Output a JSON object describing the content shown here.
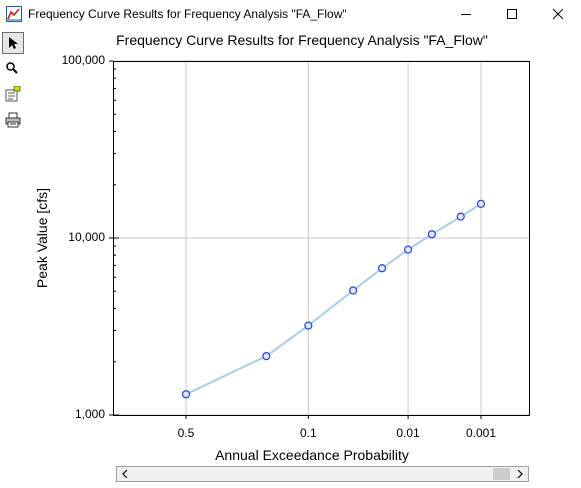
{
  "window": {
    "title": "Frequency Curve Results for Frequency Analysis \"FA_Flow\""
  },
  "toolbar": {
    "tools": [
      {
        "name": "select",
        "icon": "arrow-pointer-icon"
      },
      {
        "name": "zoom",
        "icon": "magnifier-icon"
      },
      {
        "name": "properties",
        "icon": "properties-icon"
      },
      {
        "name": "print",
        "icon": "printer-icon"
      }
    ]
  },
  "chart_data": {
    "type": "line",
    "title": "Frequency Curve Results for Frequency Analysis \"FA_Flow\"",
    "xlabel": "Annual Exceedance Probability",
    "ylabel": "Peak Value [cfs]",
    "x_scale": "normal-probability",
    "y_scale": "log",
    "ylim": [
      1000,
      100000
    ],
    "y_ticks": [
      "1,000",
      "10,000",
      "100,000"
    ],
    "x_ticks": [
      "0.5",
      "0.1",
      "0.01",
      "0.001"
    ],
    "grid": true,
    "series": [
      {
        "x": [
          0.5,
          0.2,
          0.1,
          0.04,
          0.02,
          0.01,
          0.005,
          0.002,
          0.001
        ],
        "y": [
          1310,
          2150,
          3200,
          5050,
          6750,
          8600,
          10500,
          13200,
          15600
        ],
        "line_color": "#a6cde6",
        "marker_color": "#1f3fe6"
      }
    ]
  },
  "scrollbar": {
    "left_arrow": "‹",
    "right_arrow": "›"
  }
}
